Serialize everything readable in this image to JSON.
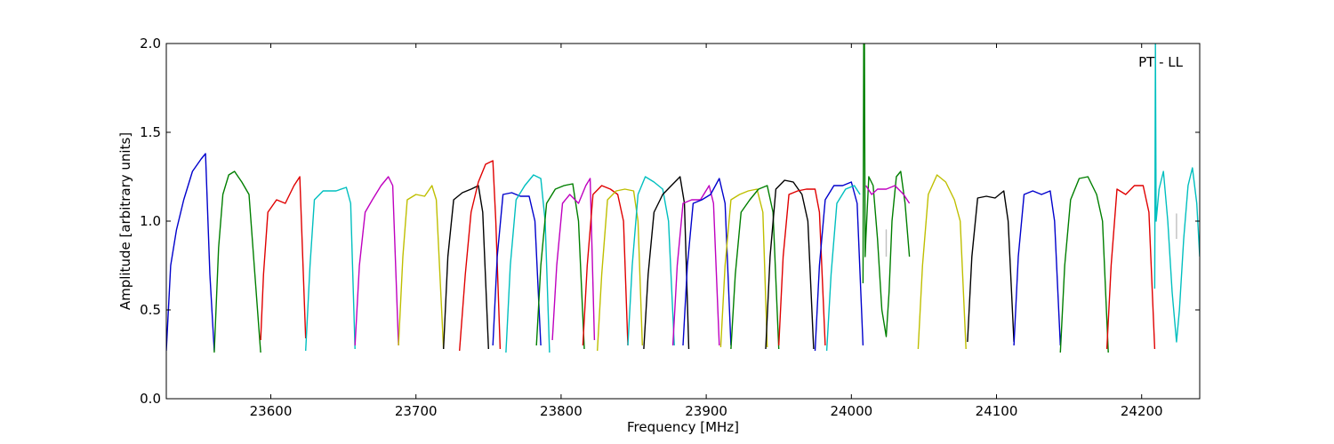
{
  "chart_data": {
    "type": "line",
    "title": "",
    "xlabel": "Frequency [MHz]",
    "ylabel": "Amplitude [arbitrary units]",
    "xlim": [
      23528,
      24240
    ],
    "ylim": [
      0.0,
      2.0
    ],
    "xticks": [
      23600,
      23700,
      23800,
      23900,
      24000,
      24100,
      24200
    ],
    "yticks": [
      0.0,
      0.5,
      1.0,
      1.5,
      2.0
    ],
    "xtick_labels": [
      "23600",
      "23700",
      "23800",
      "23900",
      "24000",
      "24100",
      "24200"
    ],
    "ytick_labels": [
      "0.0",
      "0.5",
      "1.0",
      "1.5",
      "2.0"
    ],
    "annotation": "PT - LL",
    "grid": false,
    "legend": "none",
    "series": [
      {
        "color": "#0000cc",
        "x": [
          23528,
          23531,
          23535,
          23540,
          23546,
          23552,
          23555,
          23558,
          23561
        ],
        "y": [
          0.27,
          0.75,
          0.95,
          1.12,
          1.28,
          1.35,
          1.38,
          0.7,
          0.27
        ]
      },
      {
        "color": "#007f00",
        "x": [
          23561,
          23564,
          23567,
          23571,
          23575,
          23580,
          23585,
          23589,
          23593
        ],
        "y": [
          0.26,
          0.85,
          1.15,
          1.26,
          1.28,
          1.22,
          1.15,
          0.7,
          0.26
        ]
      },
      {
        "color": "#e00000",
        "x": [
          23593,
          23595,
          23598,
          23604,
          23610,
          23616,
          23620,
          23624
        ],
        "y": [
          0.33,
          0.7,
          1.05,
          1.12,
          1.1,
          1.2,
          1.25,
          0.34
        ]
      },
      {
        "color": "#00bfbf",
        "x": [
          23624,
          23627,
          23630,
          23636,
          23645,
          23652,
          23655,
          23658
        ],
        "y": [
          0.27,
          0.75,
          1.12,
          1.17,
          1.17,
          1.19,
          1.1,
          0.28
        ]
      },
      {
        "color": "#bf00bf",
        "x": [
          23658,
          23661,
          23665,
          23670,
          23676,
          23681,
          23684,
          23688
        ],
        "y": [
          0.3,
          0.75,
          1.05,
          1.12,
          1.2,
          1.25,
          1.2,
          0.3
        ]
      },
      {
        "color": "#bfbf00",
        "x": [
          23688,
          23691,
          23694,
          23700,
          23706,
          23711,
          23714,
          23719
        ],
        "y": [
          0.3,
          0.8,
          1.12,
          1.15,
          1.14,
          1.2,
          1.12,
          0.28
        ]
      },
      {
        "color": "#000000",
        "x": [
          23719,
          23722,
          23726,
          23732,
          23738,
          23743,
          23746,
          23750
        ],
        "y": [
          0.28,
          0.8,
          1.12,
          1.16,
          1.18,
          1.2,
          1.05,
          0.28
        ]
      },
      {
        "color": "#e00000",
        "x": [
          23730,
          23734,
          23738,
          23743,
          23748,
          23753,
          23755,
          23758
        ],
        "y": [
          0.27,
          0.7,
          1.05,
          1.22,
          1.32,
          1.34,
          1.0,
          0.28
        ]
      },
      {
        "color": "#0000cc",
        "x": [
          23753,
          23756,
          23760,
          23766,
          23772,
          23778,
          23782,
          23786
        ],
        "y": [
          0.3,
          0.8,
          1.15,
          1.16,
          1.14,
          1.14,
          1.0,
          0.3
        ]
      },
      {
        "color": "#00bfbf",
        "x": [
          23762,
          23765,
          23769,
          23775,
          23781,
          23786,
          23789,
          23792
        ],
        "y": [
          0.26,
          0.75,
          1.12,
          1.2,
          1.26,
          1.24,
          1.0,
          0.26
        ]
      },
      {
        "color": "#007f00",
        "x": [
          23783,
          23786,
          23790,
          23796,
          23802,
          23808,
          23812,
          23816
        ],
        "y": [
          0.3,
          0.75,
          1.1,
          1.18,
          1.2,
          1.21,
          1.0,
          0.28
        ]
      },
      {
        "color": "#bf00bf",
        "x": [
          23794,
          23797,
          23801,
          23806,
          23812,
          23817,
          23820,
          23823
        ],
        "y": [
          0.33,
          0.75,
          1.1,
          1.15,
          1.1,
          1.2,
          1.24,
          0.33
        ]
      },
      {
        "color": "#e00000",
        "x": [
          23815,
          23818,
          23822,
          23828,
          23834,
          23839,
          23843,
          23846
        ],
        "y": [
          0.3,
          0.75,
          1.15,
          1.2,
          1.18,
          1.15,
          1.0,
          0.3
        ]
      },
      {
        "color": "#bfbf00",
        "x": [
          23825,
          23828,
          23832,
          23838,
          23844,
          23850,
          23853,
          23856
        ],
        "y": [
          0.27,
          0.7,
          1.12,
          1.17,
          1.18,
          1.17,
          1.0,
          0.3
        ]
      },
      {
        "color": "#00bfbf",
        "x": [
          23846,
          23849,
          23853,
          23858,
          23864,
          23870,
          23874,
          23878
        ],
        "y": [
          0.3,
          0.75,
          1.15,
          1.25,
          1.22,
          1.18,
          1.0,
          0.3
        ]
      },
      {
        "color": "#000000",
        "x": [
          23857,
          23860,
          23864,
          23870,
          23876,
          23882,
          23885,
          23888
        ],
        "y": [
          0.28,
          0.7,
          1.05,
          1.15,
          1.2,
          1.25,
          1.1,
          0.28
        ]
      },
      {
        "color": "#bf00bf",
        "x": [
          23877,
          23880,
          23884,
          23890,
          23896,
          23902,
          23905,
          23909
        ],
        "y": [
          0.3,
          0.75,
          1.1,
          1.12,
          1.12,
          1.2,
          1.1,
          0.3
        ]
      },
      {
        "color": "#0000cc",
        "x": [
          23884,
          23887,
          23891,
          23897,
          23903,
          23909,
          23913,
          23917
        ],
        "y": [
          0.3,
          0.75,
          1.1,
          1.12,
          1.15,
          1.24,
          1.1,
          0.3
        ]
      },
      {
        "color": "#bfbf00",
        "x": [
          23910,
          23913,
          23917,
          23923,
          23929,
          23935,
          23939,
          23942
        ],
        "y": [
          0.29,
          0.75,
          1.12,
          1.15,
          1.17,
          1.18,
          1.05,
          0.29
        ]
      },
      {
        "color": "#007f00",
        "x": [
          23917,
          23920,
          23924,
          23930,
          23936,
          23942,
          23946,
          23950
        ],
        "y": [
          0.28,
          0.7,
          1.05,
          1.12,
          1.18,
          1.2,
          1.05,
          0.28
        ]
      },
      {
        "color": "#000000",
        "x": [
          23941,
          23944,
          23948,
          23954,
          23960,
          23966,
          23970,
          23974
        ],
        "y": [
          0.28,
          0.8,
          1.18,
          1.23,
          1.22,
          1.15,
          1.0,
          0.28
        ]
      },
      {
        "color": "#e00000",
        "x": [
          23950,
          23953,
          23957,
          23963,
          23969,
          23975,
          23978,
          23982
        ],
        "y": [
          0.3,
          0.8,
          1.15,
          1.17,
          1.18,
          1.18,
          1.05,
          0.3
        ]
      },
      {
        "color": "#0000cc",
        "x": [
          23975,
          23978,
          23982,
          23988,
          23994,
          24000,
          24004,
          24008
        ],
        "y": [
          0.27,
          0.75,
          1.12,
          1.2,
          1.2,
          1.22,
          1.1,
          0.3
        ]
      },
      {
        "color": "#00bfbf",
        "x": [
          23983,
          23986,
          23990,
          23996,
          24002,
          24006
        ],
        "y": [
          0.27,
          0.7,
          1.1,
          1.18,
          1.2,
          1.15
        ]
      },
      {
        "color": "#007f00",
        "x": [
          24008,
          24008.5,
          24009,
          24009.5,
          24010,
          24012,
          24015,
          24018,
          24021,
          24024,
          24026,
          24028,
          24031,
          24034,
          24037,
          24040
        ],
        "y": [
          0.65,
          2.0,
          2.0,
          0.8,
          0.9,
          1.25,
          1.2,
          0.9,
          0.5,
          0.35,
          0.6,
          1.0,
          1.25,
          1.28,
          1.1,
          0.8
        ]
      },
      {
        "color": "#bf00bf",
        "x": [
          24010,
          24014,
          24018,
          24024,
          24030,
          24036,
          24040
        ],
        "y": [
          1.2,
          1.15,
          1.18,
          1.18,
          1.2,
          1.15,
          1.1
        ]
      },
      {
        "color": "#c0c0c0",
        "x": [
          24024,
          24024,
          24024
        ],
        "y": [
          0.8,
          0.95,
          0.8
        ]
      },
      {
        "color": "#bfbf00",
        "x": [
          24046,
          24049,
          24053,
          24059,
          24065,
          24071,
          24075,
          24079
        ],
        "y": [
          0.28,
          0.75,
          1.15,
          1.26,
          1.22,
          1.12,
          1.0,
          0.28
        ]
      },
      {
        "color": "#000000",
        "x": [
          24080,
          24083,
          24087,
          24093,
          24099,
          24105,
          24108,
          24112
        ],
        "y": [
          0.32,
          0.8,
          1.13,
          1.14,
          1.13,
          1.17,
          1.0,
          0.32
        ]
      },
      {
        "color": "#0000cc",
        "x": [
          24112,
          24115,
          24119,
          24125,
          24131,
          24137,
          24140,
          24144
        ],
        "y": [
          0.3,
          0.8,
          1.15,
          1.17,
          1.15,
          1.17,
          1.0,
          0.3
        ]
      },
      {
        "color": "#007f00",
        "x": [
          24144,
          24147,
          24151,
          24157,
          24163,
          24169,
          24173,
          24177
        ],
        "y": [
          0.26,
          0.75,
          1.12,
          1.24,
          1.25,
          1.15,
          1.0,
          0.26
        ]
      },
      {
        "color": "#e00000",
        "x": [
          24176,
          24179,
          24183,
          24189,
          24195,
          24201,
          24205,
          24209
        ],
        "y": [
          0.28,
          0.75,
          1.18,
          1.15,
          1.2,
          1.2,
          1.05,
          0.28
        ]
      },
      {
        "color": "#00bfbf",
        "x": [
          24209,
          24209.5,
          24210,
          24212,
          24215,
          24218,
          24221,
          24224,
          24226,
          24229,
          24232,
          24235,
          24238,
          24240
        ],
        "y": [
          0.62,
          2.0,
          1.0,
          1.18,
          1.28,
          1.0,
          0.6,
          0.32,
          0.5,
          0.9,
          1.2,
          1.3,
          1.1,
          0.8
        ]
      },
      {
        "color": "#c0c0c0",
        "x": [
          24224,
          24224,
          24224
        ],
        "y": [
          0.9,
          1.04,
          0.9
        ]
      }
    ]
  }
}
